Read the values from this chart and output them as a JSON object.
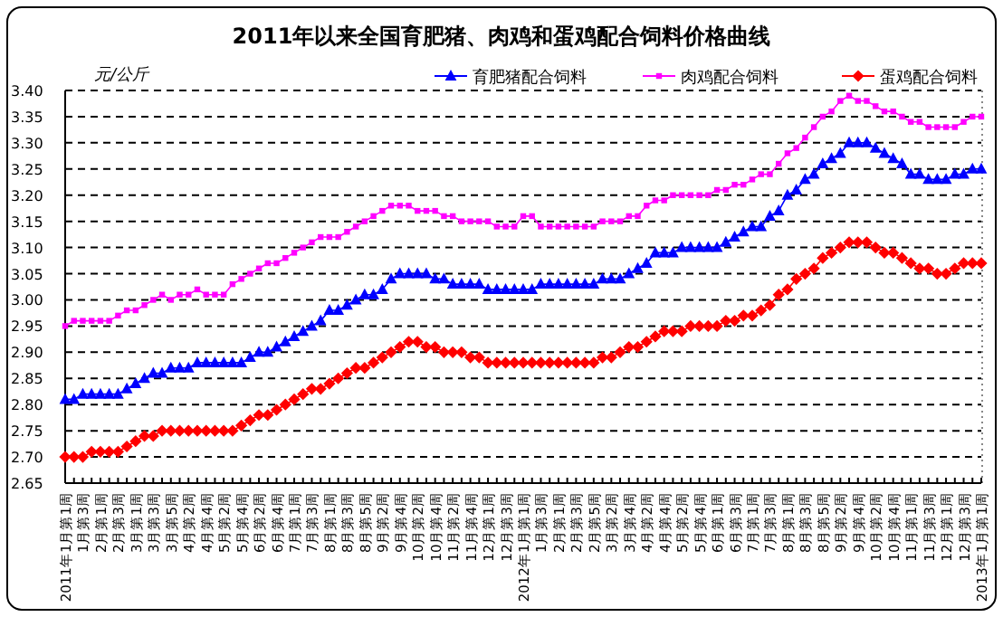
{
  "chart_data": {
    "type": "line",
    "title": "2011年以来全国育肥猪、肉鸡和蛋鸡配合饲料价格曲线",
    "ylabel": "元/公斤",
    "categories": [
      "2011年1月第1周",
      null,
      "1月第3周",
      null,
      "2月第1周",
      null,
      "2月第3周",
      null,
      "3月第1周",
      null,
      "3月第3周",
      null,
      "3月第5周",
      null,
      "4月第2周",
      null,
      "4月第4周",
      null,
      "5月第2周",
      null,
      "5月第4周",
      null,
      "6月第2周",
      null,
      "6月第4周",
      null,
      "7月第1周",
      null,
      "7月第3周",
      null,
      "8月第1周",
      null,
      "8月第3周",
      null,
      "8月第5周",
      null,
      "9月第2周",
      null,
      "9月第4周",
      null,
      "10月第2周",
      null,
      "10月第4周",
      null,
      "11月第2周",
      null,
      "11月第4周",
      null,
      "12月第1周",
      null,
      "12月第3周",
      null,
      "2012年1月第1周",
      null,
      "1月第3周",
      null,
      "2月第1周",
      null,
      "2月第3周",
      null,
      "2月第5周",
      null,
      "3月第2周",
      null,
      "3月第4周",
      null,
      "4月第2周",
      null,
      "4月第4周",
      null,
      "5月第2周",
      null,
      "5月第4周",
      null,
      "6月第1周",
      null,
      "6月第3周",
      null,
      "7月第1周",
      null,
      "7月第3周",
      null,
      "8月第1周",
      null,
      "8月第3周",
      null,
      "8月第5周",
      null,
      "9月第2周",
      null,
      "9月第4周",
      null,
      "10月第2周",
      null,
      "10月第4周",
      null,
      "11月第1周",
      null,
      "11月第3周",
      null,
      "12月第1周",
      null,
      "12月第3周",
      null,
      "2013年1月第1周"
    ],
    "series": [
      {
        "name": "育肥猪配合饲料",
        "color": "#0000ff",
        "marker": "triangle",
        "values": [
          2.81,
          2.81,
          2.82,
          2.82,
          2.82,
          2.82,
          2.82,
          2.83,
          2.84,
          2.85,
          2.86,
          2.86,
          2.87,
          2.87,
          2.87,
          2.88,
          2.88,
          2.88,
          2.88,
          2.88,
          2.88,
          2.89,
          2.9,
          2.9,
          2.91,
          2.92,
          2.93,
          2.94,
          2.95,
          2.96,
          2.98,
          2.98,
          2.99,
          3.0,
          3.01,
          3.01,
          3.02,
          3.04,
          3.05,
          3.05,
          3.05,
          3.05,
          3.04,
          3.04,
          3.03,
          3.03,
          3.03,
          3.03,
          3.02,
          3.02,
          3.02,
          3.02,
          3.02,
          3.02,
          3.03,
          3.03,
          3.03,
          3.03,
          3.03,
          3.03,
          3.03,
          3.04,
          3.04,
          3.04,
          3.05,
          3.06,
          3.07,
          3.09,
          3.09,
          3.09,
          3.1,
          3.1,
          3.1,
          3.1,
          3.1,
          3.11,
          3.12,
          3.13,
          3.14,
          3.14,
          3.16,
          3.17,
          3.2,
          3.21,
          3.23,
          3.24,
          3.26,
          3.27,
          3.28,
          3.3,
          3.3,
          3.3,
          3.29,
          3.28,
          3.27,
          3.26,
          3.24,
          3.24,
          3.23,
          3.23,
          3.23,
          3.24,
          3.24,
          3.25,
          3.25
        ]
      },
      {
        "name": "肉鸡配合饲料",
        "color": "#ff00ff",
        "marker": "square",
        "values": [
          2.95,
          2.96,
          2.96,
          2.96,
          2.96,
          2.96,
          2.97,
          2.98,
          2.98,
          2.99,
          3.0,
          3.01,
          3.0,
          3.01,
          3.01,
          3.02,
          3.01,
          3.01,
          3.01,
          3.03,
          3.04,
          3.05,
          3.06,
          3.07,
          3.07,
          3.08,
          3.09,
          3.1,
          3.11,
          3.12,
          3.12,
          3.12,
          3.13,
          3.14,
          3.15,
          3.16,
          3.17,
          3.18,
          3.18,
          3.18,
          3.17,
          3.17,
          3.17,
          3.16,
          3.16,
          3.15,
          3.15,
          3.15,
          3.15,
          3.14,
          3.14,
          3.14,
          3.16,
          3.16,
          3.14,
          3.14,
          3.14,
          3.14,
          3.14,
          3.14,
          3.14,
          3.15,
          3.15,
          3.15,
          3.16,
          3.16,
          3.18,
          3.19,
          3.19,
          3.2,
          3.2,
          3.2,
          3.2,
          3.2,
          3.21,
          3.21,
          3.22,
          3.22,
          3.23,
          3.24,
          3.24,
          3.26,
          3.28,
          3.29,
          3.31,
          3.33,
          3.35,
          3.36,
          3.38,
          3.39,
          3.38,
          3.38,
          3.37,
          3.36,
          3.36,
          3.35,
          3.34,
          3.34,
          3.33,
          3.33,
          3.33,
          3.33,
          3.34,
          3.35,
          3.35
        ]
      },
      {
        "name": "蛋鸡配合饲料",
        "color": "#ff0000",
        "marker": "diamond",
        "values": [
          2.7,
          2.7,
          2.7,
          2.71,
          2.71,
          2.71,
          2.71,
          2.72,
          2.73,
          2.74,
          2.74,
          2.75,
          2.75,
          2.75,
          2.75,
          2.75,
          2.75,
          2.75,
          2.75,
          2.75,
          2.76,
          2.77,
          2.78,
          2.78,
          2.79,
          2.8,
          2.81,
          2.82,
          2.83,
          2.83,
          2.84,
          2.85,
          2.86,
          2.87,
          2.87,
          2.88,
          2.89,
          2.9,
          2.91,
          2.92,
          2.92,
          2.91,
          2.91,
          2.9,
          2.9,
          2.9,
          2.89,
          2.89,
          2.88,
          2.88,
          2.88,
          2.88,
          2.88,
          2.88,
          2.88,
          2.88,
          2.88,
          2.88,
          2.88,
          2.88,
          2.88,
          2.89,
          2.89,
          2.9,
          2.91,
          2.91,
          2.92,
          2.93,
          2.94,
          2.94,
          2.94,
          2.95,
          2.95,
          2.95,
          2.95,
          2.96,
          2.96,
          2.97,
          2.97,
          2.98,
          2.99,
          3.01,
          3.02,
          3.04,
          3.05,
          3.06,
          3.08,
          3.09,
          3.1,
          3.11,
          3.11,
          3.11,
          3.1,
          3.09,
          3.09,
          3.08,
          3.07,
          3.06,
          3.06,
          3.05,
          3.05,
          3.06,
          3.07,
          3.07,
          3.07
        ]
      }
    ],
    "ylim": [
      2.65,
      3.4
    ],
    "yticks": [
      {
        "value": 2.65,
        "label": "2.65"
      },
      {
        "value": 2.7,
        "label": "2.70"
      },
      {
        "value": 2.75,
        "label": "2.75"
      },
      {
        "value": 2.8,
        "label": "2.80"
      },
      {
        "value": 2.85,
        "label": "2.85"
      },
      {
        "value": 2.9,
        "label": "2.90"
      },
      {
        "value": 2.95,
        "label": "2.95"
      },
      {
        "value": 3.0,
        "label": "3.00"
      },
      {
        "value": 3.05,
        "label": "3.05"
      },
      {
        "value": 3.1,
        "label": "3.10"
      },
      {
        "value": 3.15,
        "label": "3.15"
      },
      {
        "value": 3.2,
        "label": "3.20"
      },
      {
        "value": 3.25,
        "label": "3.25"
      },
      {
        "value": 3.3,
        "label": "3.30"
      },
      {
        "value": 3.35,
        "label": "3.35"
      },
      {
        "value": 3.4,
        "label": "3.40"
      }
    ],
    "grid": "y",
    "legend": "top right",
    "line_style": "solid"
  }
}
